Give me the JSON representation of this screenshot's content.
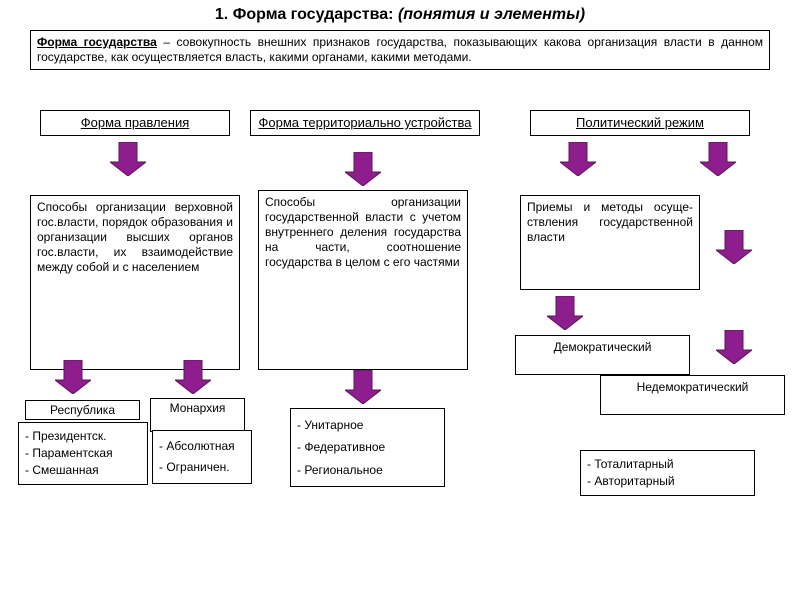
{
  "colors": {
    "arrow_fill": "#8e1e8e",
    "arrow_stroke": "#5a145a",
    "box_border": "#000000",
    "background": "#ffffff",
    "text": "#000000"
  },
  "title": {
    "prefix": "1. Форма государства: ",
    "emphasis": "(понятия и элементы)"
  },
  "definition": {
    "term": "Форма государства",
    "text": " – совокупность внешних признаков государства, показывающих какова организация власти в данном государстве, как осуществляется власть, какими органами, какими методами."
  },
  "columns": {
    "gov_form": {
      "header": "Форма правления",
      "desc": "Способы организации верховной гос.власти, порядок образования и организации высших органов гос.власти, их взаимодействие между собой и с населением",
      "sub_left": {
        "title": "Республика",
        "items": [
          "Президентск.",
          "Параментская",
          "Смешанная"
        ]
      },
      "sub_right": {
        "title": "Монархия",
        "items": [
          "Абсолютная",
          "Ограничен."
        ]
      }
    },
    "territory": {
      "header": "Форма территориально устройства",
      "desc": "Способы организации государственной власти с учетом внутреннего деления государства на части, соотношение государства в целом с его частями",
      "items": [
        "Унитарное",
        "Федеративное",
        "Региональное"
      ]
    },
    "regime": {
      "header": "Политический режим",
      "desc": "Приемы и методы осуще-ствления государственной власти",
      "demo": "Демократический",
      "nondemo": "Недемократический",
      "items": [
        "Тоталитарный",
        "Авторитарный"
      ]
    }
  },
  "layout": {
    "arrow": {
      "w": 36,
      "h": 34,
      "shaft_w": 18,
      "head_h": 14
    }
  }
}
